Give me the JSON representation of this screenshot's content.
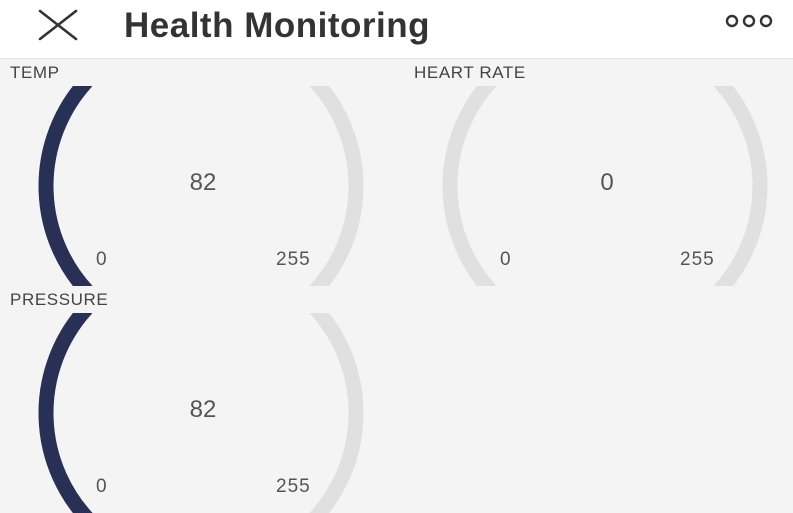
{
  "header": {
    "title": "Health Monitoring",
    "close_icon": "close-icon",
    "more_icon": "more-options-icon"
  },
  "colors": {
    "gauge_fill": "#283056",
    "gauge_track": "#e0e0e0"
  },
  "gauges": [
    {
      "label": "TEMP",
      "value": "82",
      "min": "0",
      "max": "255",
      "fraction": 0.3216
    },
    {
      "label": "HEART RATE",
      "value": "0",
      "min": "0",
      "max": "255",
      "fraction": 0
    },
    {
      "label": "PRESSURE",
      "value": "82",
      "min": "0",
      "max": "255",
      "fraction": 0.3216
    }
  ]
}
